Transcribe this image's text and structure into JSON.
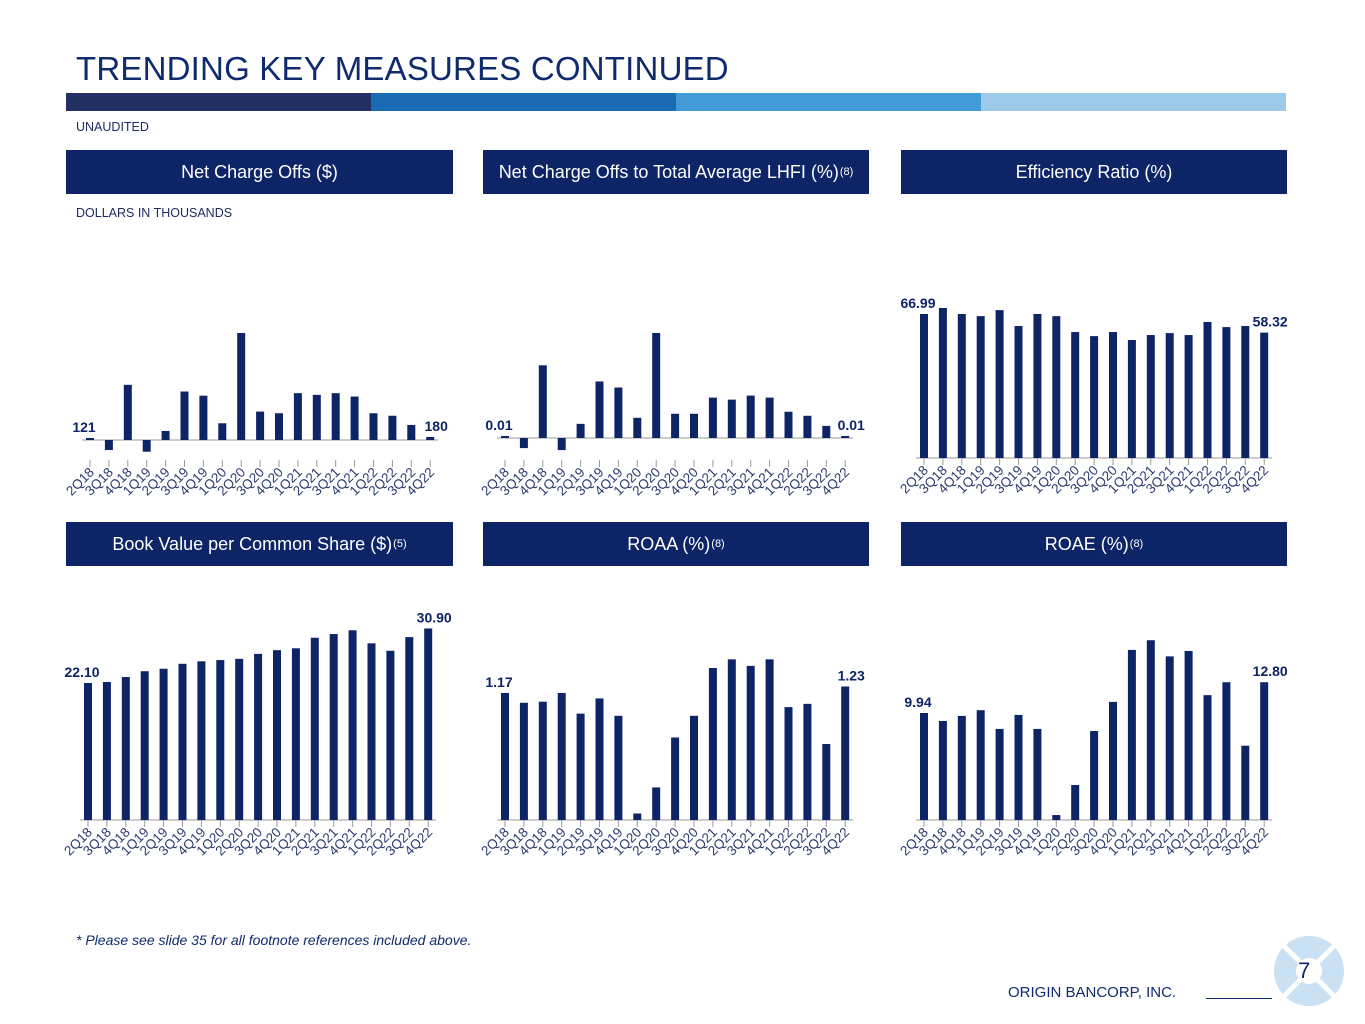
{
  "header": {
    "title": "TRENDING KEY MEASURES CONTINUED",
    "subtitle": "UNAUDITED",
    "stripe_colors": [
      "#233064",
      "#1a6ab4",
      "#429ad6",
      "#9ccbea"
    ]
  },
  "panels": [
    {
      "title": "Net Charge Offs ($)",
      "sup": "",
      "note": "DOLLARS IN THOUSANDS"
    },
    {
      "title": "Net Charge Offs to Total Average LHFI (%)",
      "sup": "(8)"
    },
    {
      "title": "Efficiency Ratio (%)",
      "sup": ""
    },
    {
      "title": "Book Value per Common Share ($)",
      "sup": "(5)"
    },
    {
      "title": "ROAA (%)",
      "sup": "(8)"
    },
    {
      "title": "ROAE (%)",
      "sup": "(8)"
    }
  ],
  "chart_data": [
    {
      "type": "bar",
      "title": "Net Charge Offs ($)",
      "bar_color": "#0d2466",
      "categories": [
        "2Q18",
        "3Q18",
        "4Q18",
        "1Q19",
        "2Q19",
        "3Q19",
        "4Q19",
        "1Q20",
        "2Q20",
        "3Q20",
        "4Q20",
        "1Q21",
        "2Q21",
        "3Q21",
        "4Q21",
        "1Q22",
        "2Q22",
        "3Q22",
        "4Q22"
      ],
      "values": [
        121,
        -600,
        3300,
        -700,
        540,
        2900,
        2650,
        1000,
        6400,
        1700,
        1600,
        2800,
        2700,
        2800,
        2600,
        1600,
        1450,
        900,
        180
      ],
      "data_labels": {
        "0": "121",
        "18": "180"
      }
    },
    {
      "type": "bar",
      "title": "Net Charge Offs to Total Average LHFI (%)",
      "bar_color": "#0d2466",
      "categories": [
        "2Q18",
        "3Q18",
        "4Q18",
        "1Q19",
        "2Q19",
        "3Q19",
        "4Q19",
        "1Q20",
        "2Q20",
        "3Q20",
        "4Q20",
        "1Q21",
        "2Q21",
        "3Q21",
        "4Q21",
        "1Q22",
        "2Q22",
        "3Q22",
        "4Q22"
      ],
      "values": [
        0.01,
        -0.05,
        0.36,
        -0.06,
        0.07,
        0.28,
        0.25,
        0.1,
        0.52,
        0.12,
        0.12,
        0.2,
        0.19,
        0.21,
        0.2,
        0.13,
        0.11,
        0.06,
        0.01
      ],
      "data_labels": {
        "0": "0.01",
        "18": "0.01"
      }
    },
    {
      "type": "bar",
      "title": "Efficiency Ratio (%)",
      "bar_color": "#0d2466",
      "categories": [
        "2Q18",
        "3Q18",
        "4Q18",
        "1Q19",
        "2Q19",
        "3Q19",
        "4Q19",
        "1Q20",
        "2Q20",
        "3Q20",
        "4Q20",
        "1Q21",
        "2Q21",
        "3Q21",
        "4Q21",
        "1Q22",
        "2Q22",
        "3Q22",
        "4Q22"
      ],
      "values": [
        66.99,
        69.8,
        67.0,
        66.0,
        68.8,
        61.4,
        67.0,
        66.0,
        58.6,
        56.7,
        58.6,
        54.9,
        57.2,
        58.1,
        57.2,
        63.3,
        60.9,
        61.4,
        58.32
      ],
      "data_labels": {
        "0": "66.99",
        "18": "58.32"
      }
    },
    {
      "type": "bar",
      "title": "Book Value per Common Share ($)",
      "bar_color": "#0d2466",
      "categories": [
        "2Q18",
        "3Q18",
        "4Q18",
        "1Q19",
        "2Q19",
        "3Q19",
        "4Q19",
        "1Q20",
        "2Q20",
        "3Q20",
        "4Q20",
        "1Q21",
        "2Q21",
        "3Q21",
        "4Q21",
        "1Q22",
        "2Q22",
        "3Q22",
        "4Q22"
      ],
      "values": [
        22.1,
        22.26,
        23.06,
        24.0,
        24.4,
        25.2,
        25.6,
        25.8,
        26.0,
        26.8,
        27.4,
        27.7,
        29.4,
        30.0,
        30.6,
        28.5,
        27.3,
        29.5,
        30.9
      ],
      "data_labels": {
        "0": "22.10",
        "18": "30.90"
      }
    },
    {
      "type": "bar",
      "title": "ROAA (%)",
      "bar_color": "#0d2466",
      "categories": [
        "2Q18",
        "3Q18",
        "4Q18",
        "1Q19",
        "2Q19",
        "3Q19",
        "4Q19",
        "1Q20",
        "2Q20",
        "3Q20",
        "4Q20",
        "1Q21",
        "2Q21",
        "3Q21",
        "4Q21",
        "1Q22",
        "2Q22",
        "3Q22",
        "4Q22"
      ],
      "values": [
        1.17,
        1.08,
        1.09,
        1.17,
        0.98,
        1.12,
        0.96,
        0.06,
        0.3,
        0.76,
        0.96,
        1.4,
        1.48,
        1.42,
        1.48,
        1.04,
        1.07,
        0.7,
        1.23
      ],
      "data_labels": {
        "0": "1.17",
        "18": "1.23"
      }
    },
    {
      "type": "bar",
      "title": "ROAE (%)",
      "bar_color": "#0d2466",
      "categories": [
        "2Q18",
        "3Q18",
        "4Q18",
        "1Q19",
        "2Q19",
        "3Q19",
        "4Q19",
        "1Q20",
        "2Q20",
        "3Q20",
        "4Q20",
        "1Q21",
        "2Q21",
        "3Q21",
        "4Q21",
        "1Q22",
        "2Q22",
        "3Q22",
        "4Q22"
      ],
      "values": [
        9.94,
        9.2,
        9.67,
        10.2,
        8.46,
        9.76,
        8.46,
        0.46,
        3.25,
        8.27,
        10.97,
        15.8,
        16.7,
        15.2,
        15.7,
        11.6,
        12.8,
        6.9,
        12.8
      ],
      "data_labels": {
        "0": "9.94",
        "18": "12.80"
      }
    }
  ],
  "footer": {
    "footnote": "* Please see slide 35 for all footnote references included above.",
    "company": "ORIGIN BANCORP, INC.",
    "page_number": "7"
  }
}
